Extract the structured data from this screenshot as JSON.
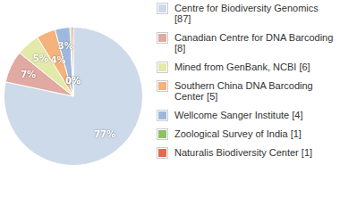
{
  "chart_data": {
    "type": "pie",
    "categories": [
      "Centre for Biodiversity Genomics [87]",
      "Canadian Centre for DNA Barcoding [8]",
      "Mined from GenBank, NCBI [6]",
      "Southern China DNA Barcoding Center [5]",
      "Wellcome Sanger Institute [4]",
      "Zoological Survey of India [1]",
      "Naturalis Biodiversity Center [1]"
    ],
    "values": [
      77.4,
      7.4,
      5.4,
      4.4,
      3.4,
      0.4,
      0.4
    ],
    "value_labels": [
      "77%",
      "7%",
      "5%",
      "4%",
      "3%",
      "0%",
      "0%"
    ],
    "colors": [
      "#cddaea",
      "#e0a9a1",
      "#e3e9a9",
      "#f5b27c",
      "#9fb8dd",
      "#8dc166",
      "#e06c50"
    ],
    "data_labels": true,
    "legend": "right"
  }
}
